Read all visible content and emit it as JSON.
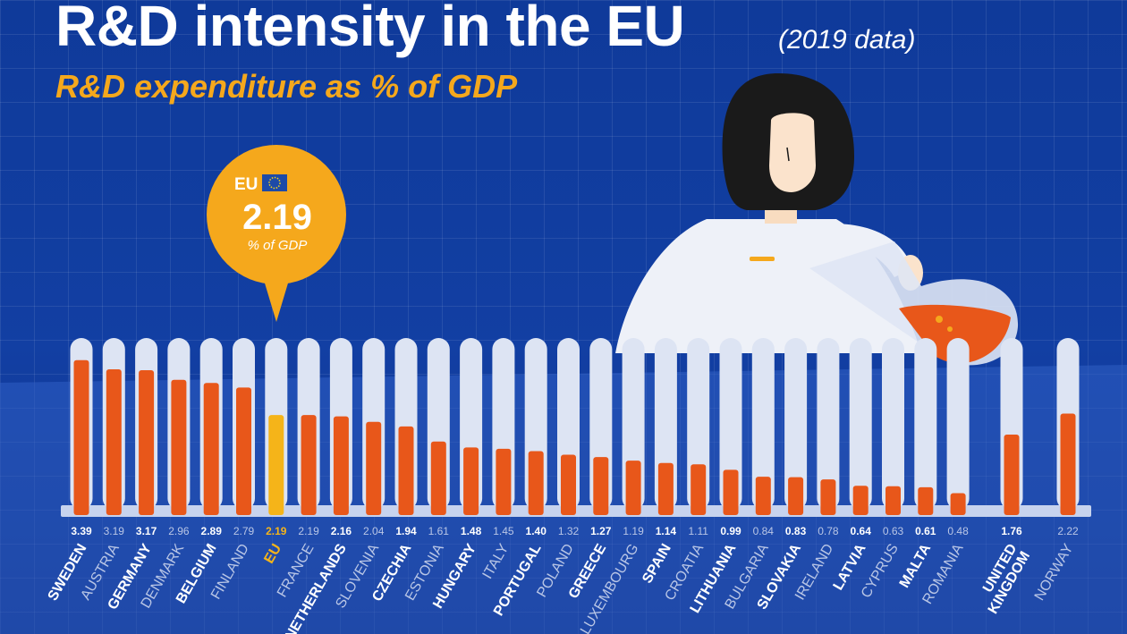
{
  "header": {
    "title": "R&D intensity in the EU",
    "title_note": "(2019 data)",
    "subtitle": "R&D expenditure as % of GDP"
  },
  "callout": {
    "label": "EU",
    "value": "2.19",
    "unit": "% of GDP"
  },
  "colors": {
    "bar_fill": "#e8571a",
    "eu_fill": "#f5b419",
    "tube": "#dde4f3",
    "callout": "#f5a81c",
    "background": "#0f3a9a"
  },
  "icons": [
    "eu-flag-icon",
    "scientist-illustration",
    "flask-icon"
  ],
  "chart_data": {
    "type": "bar",
    "categories": [
      "SWEDEN",
      "AUSTRIA",
      "GERMANY",
      "DENMARK",
      "BELGIUM",
      "FINLAND",
      "EU",
      "FRANCE",
      "NETHERLANDS",
      "SLOVENIA",
      "CZECHIA",
      "ESTONIA",
      "HUNGARY",
      "ITALY",
      "PORTUGAL",
      "POLAND",
      "GREECE",
      "LUXEMBOURG",
      "SPAIN",
      "CROATIA",
      "LITHUANIA",
      "BULGARIA",
      "SLOVAKIA",
      "IRELAND",
      "LATVIA",
      "CYPRUS",
      "MALTA",
      "ROMANIA",
      "UNITED KINGDOM",
      "NORWAY"
    ],
    "values": [
      3.39,
      3.19,
      3.17,
      2.96,
      2.89,
      2.79,
      2.19,
      2.19,
      2.16,
      2.04,
      1.94,
      1.61,
      1.48,
      1.45,
      1.4,
      1.32,
      1.27,
      1.19,
      1.14,
      1.11,
      0.99,
      0.84,
      0.83,
      0.78,
      0.64,
      0.63,
      0.61,
      0.48,
      1.76,
      2.22
    ],
    "value_labels": [
      "3.39",
      "3.19",
      "3.17",
      "2.96",
      "2.89",
      "2.79",
      "2.19",
      "2.19",
      "2.16",
      "2.04",
      "1.94",
      "1.61",
      "1.48",
      "1.45",
      "1.40",
      "1.32",
      "1.27",
      "1.19",
      "1.14",
      "1.11",
      "0.99",
      "0.84",
      "0.83",
      "0.78",
      "0.64",
      "0.63",
      "0.61",
      "0.48",
      "1.76",
      "2.22"
    ],
    "highlight": "EU",
    "ylim": [
      0,
      3.6
    ],
    "grid": true,
    "title": "R&D intensity in the EU",
    "xlabel": "",
    "ylabel": ""
  }
}
